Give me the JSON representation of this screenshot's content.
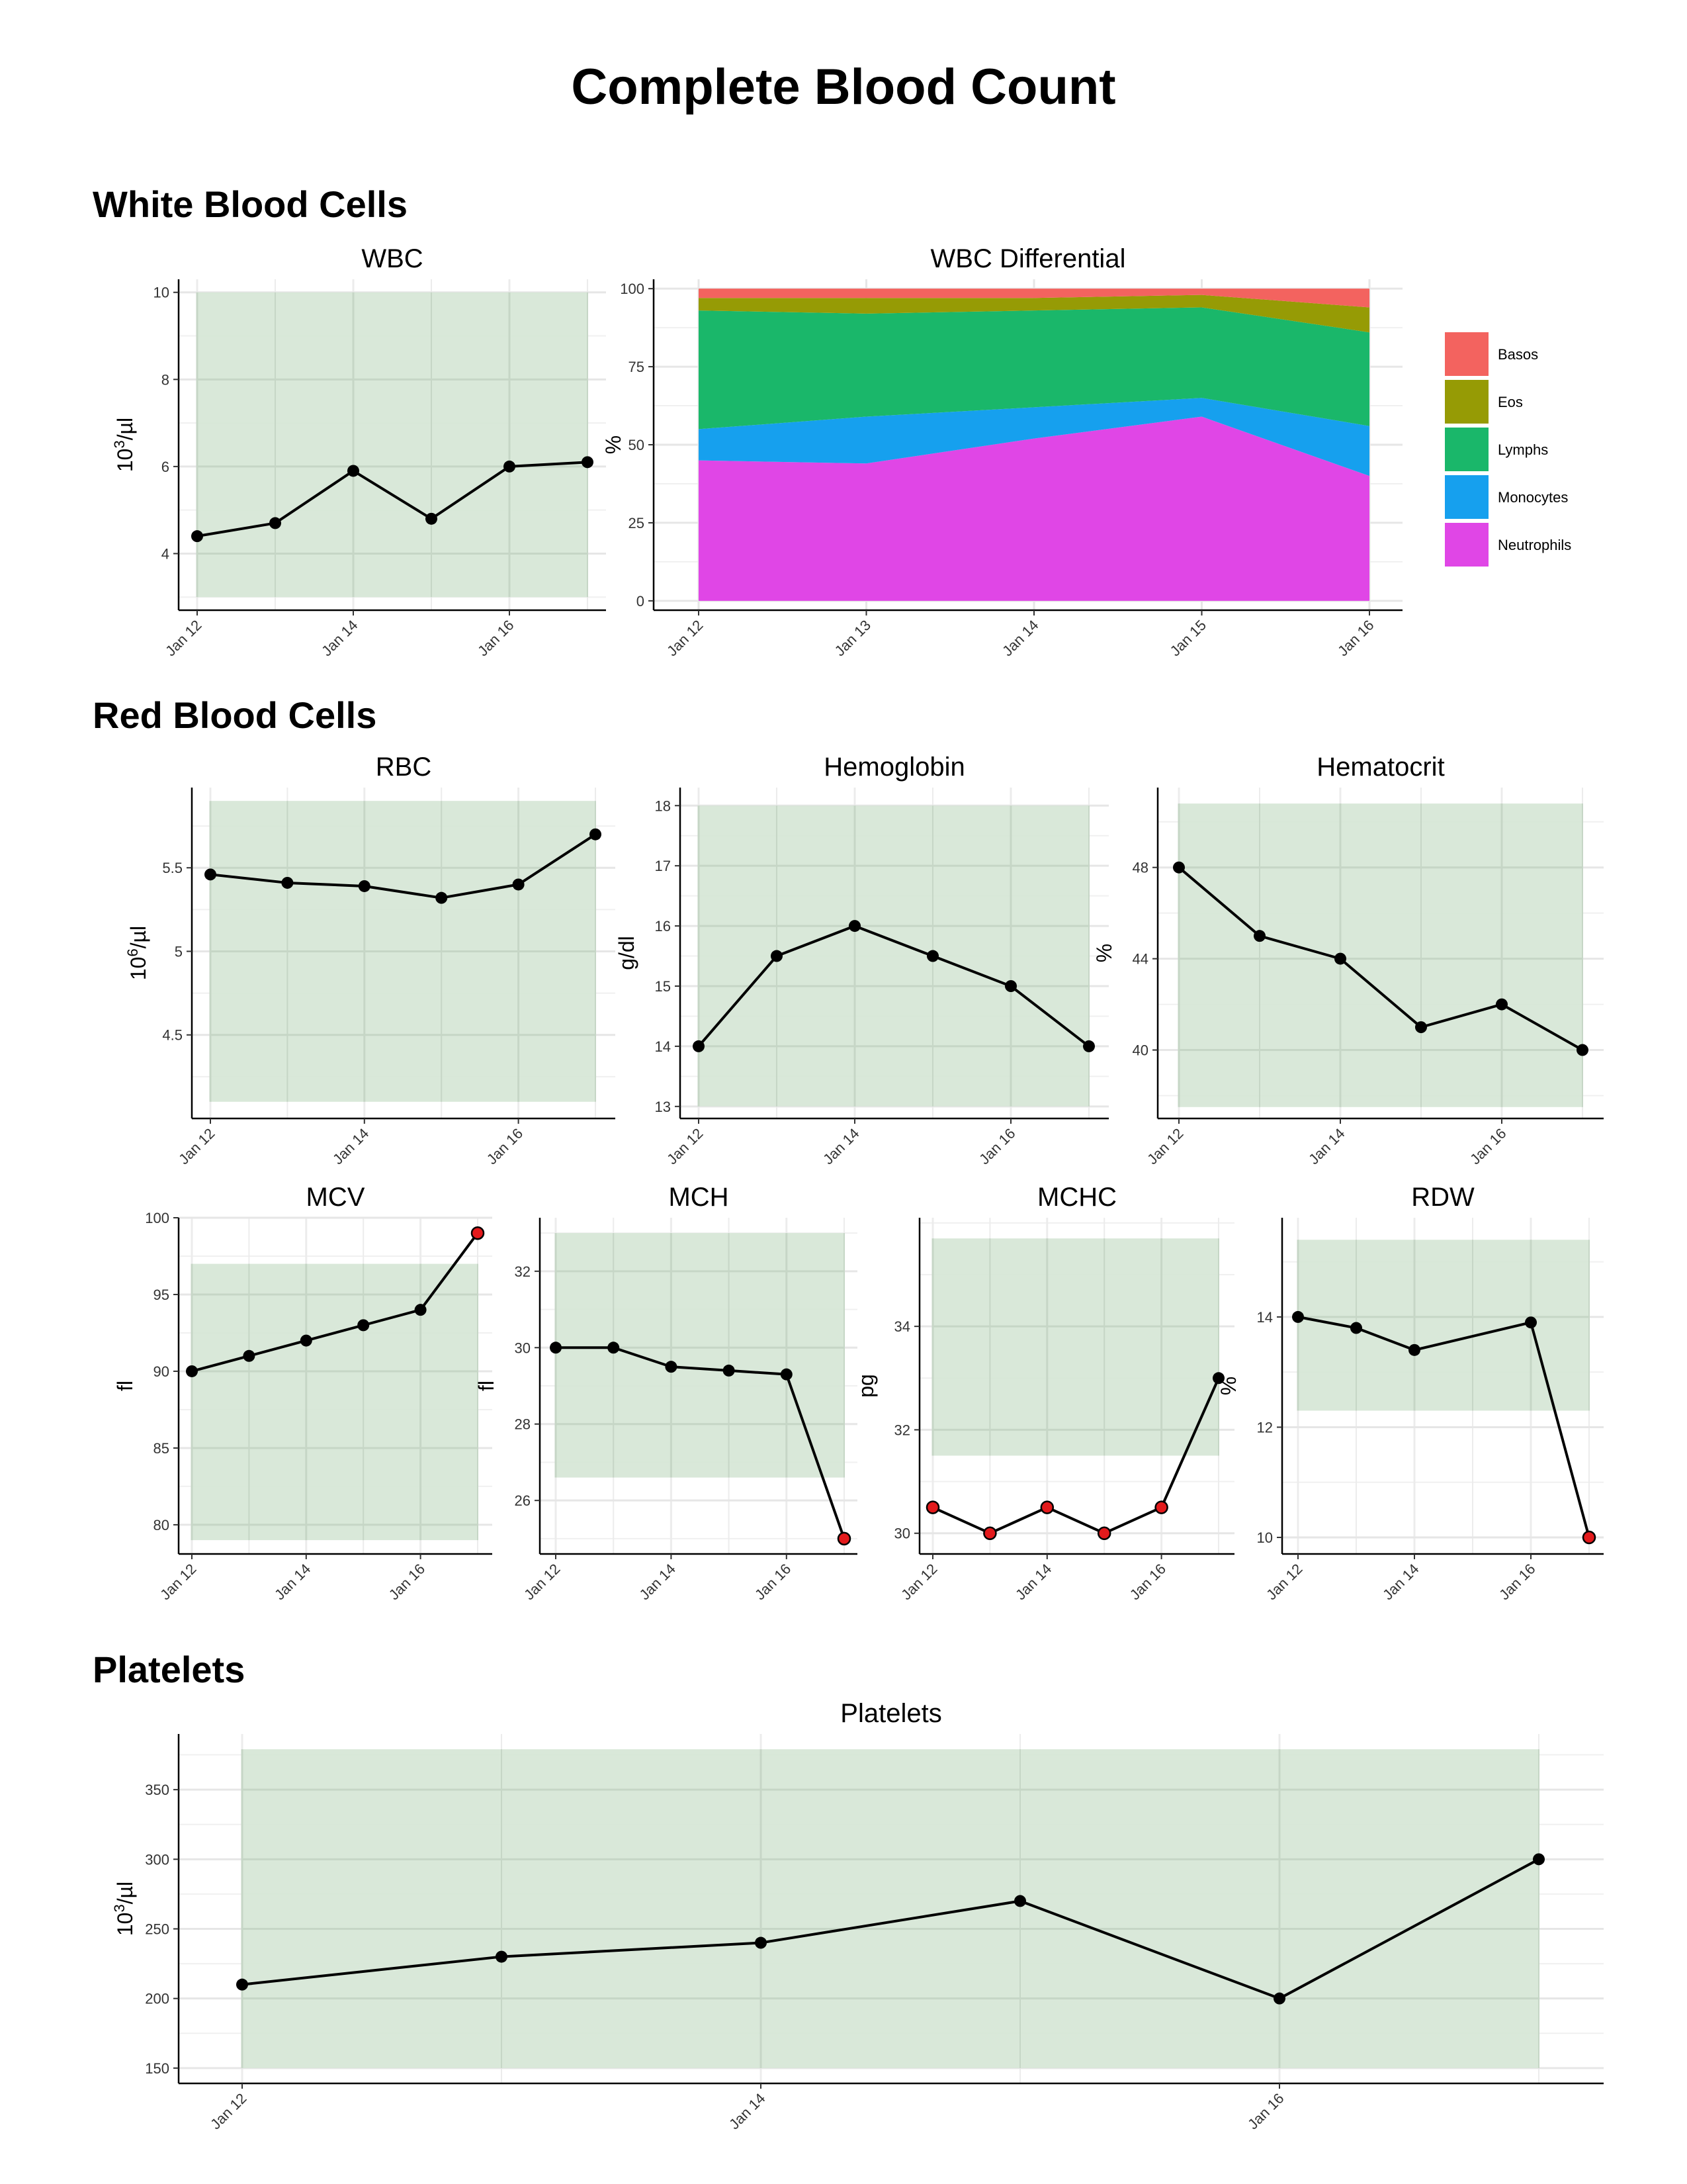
{
  "page": {
    "title": "Complete Blood Count"
  },
  "sections": {
    "wbc": "White Blood Cells",
    "rbc": "Red Blood Cells",
    "plt": "Platelets"
  },
  "colors": {
    "reference_band": "#d6e6d6",
    "line": "#000000",
    "point": "#000000",
    "point_abnormal": "#e31a1c",
    "grid": "#e6e6e6",
    "band_grid": "#c6d6c6"
  },
  "chart_data": [
    {
      "id": "wbc",
      "type": "line",
      "title": "WBC",
      "ylabel": "10^3/µl",
      "ylabel_base": "10",
      "ylabel_exp": "3",
      "ylabel_unit": "/µl",
      "x_dates": [
        "Jan 12",
        "Jan 13",
        "Jan 14",
        "Jan 15",
        "Jan 16",
        "Jan 17"
      ],
      "values": [
        4.4,
        4.7,
        5.9,
        4.8,
        6.0,
        6.1
      ],
      "abnormal": [
        false,
        false,
        false,
        false,
        false,
        false
      ],
      "reference_range": [
        3.0,
        10.0
      ],
      "ylim": [
        2.7,
        10.3
      ],
      "yticks": [
        4,
        6,
        8,
        10
      ],
      "xticks": [
        "Jan 12",
        "Jan 14",
        "Jan 16"
      ]
    },
    {
      "id": "diff",
      "type": "area",
      "title": "WBC Differential",
      "ylabel": "%",
      "categories": [
        "Jan 12",
        "Jan 13",
        "Jan 14",
        "Jan 15",
        "Jan 16"
      ],
      "series": [
        {
          "name": "Neutrophils",
          "color": "#e046e6",
          "values": [
            45,
            44,
            52,
            59,
            40
          ]
        },
        {
          "name": "Monocytes",
          "color": "#16a0ee",
          "values": [
            10,
            15,
            10,
            6,
            16
          ]
        },
        {
          "name": "Lymphs",
          "color": "#1ab76a",
          "values": [
            38,
            33,
            31,
            29,
            30
          ]
        },
        {
          "name": "Eos",
          "color": "#969b05",
          "values": [
            4,
            5,
            4,
            4,
            8
          ]
        },
        {
          "name": "Basos",
          "color": "#f3635f",
          "values": [
            3,
            3,
            3,
            2,
            6
          ]
        }
      ],
      "legend_order": [
        "Basos",
        "Eos",
        "Lymphs",
        "Monocytes",
        "Neutrophils"
      ],
      "ylim": [
        -3,
        103
      ],
      "yticks": [
        0,
        25,
        50,
        75,
        100
      ],
      "legend_position": "right"
    },
    {
      "id": "rbc",
      "type": "line",
      "title": "RBC",
      "ylabel": "10^6/µl",
      "ylabel_base": "10",
      "ylabel_exp": "6",
      "ylabel_unit": "/µl",
      "x_dates": [
        "Jan 12",
        "Jan 13",
        "Jan 14",
        "Jan 15",
        "Jan 16",
        "Jan 17"
      ],
      "values": [
        5.46,
        5.41,
        5.39,
        5.32,
        5.4,
        5.7
      ],
      "abnormal": [
        false,
        false,
        false,
        false,
        false,
        false
      ],
      "reference_range": [
        4.1,
        5.9
      ],
      "ylim": [
        4.0,
        5.98
      ],
      "yticks": [
        4.5,
        5.0,
        5.5
      ],
      "xticks": [
        "Jan 12",
        "Jan 14",
        "Jan 16"
      ]
    },
    {
      "id": "hgb",
      "type": "line",
      "title": "Hemoglobin",
      "ylabel": "g/dl",
      "x_dates": [
        "Jan 12",
        "Jan 13",
        "Jan 14",
        "Jan 15",
        "Jan 16",
        "Jan 17"
      ],
      "values": [
        14,
        15.5,
        16,
        15.5,
        15,
        14
      ],
      "abnormal": [
        false,
        false,
        false,
        false,
        false,
        false
      ],
      "reference_range": [
        13,
        18
      ],
      "ylim": [
        12.8,
        18.3
      ],
      "yticks": [
        13,
        14,
        15,
        16,
        17,
        18
      ],
      "xticks": [
        "Jan 12",
        "Jan 14",
        "Jan 16"
      ]
    },
    {
      "id": "hct",
      "type": "line",
      "title": "Hematocrit",
      "ylabel": "%",
      "x_dates": [
        "Jan 12",
        "Jan 13",
        "Jan 14",
        "Jan 15",
        "Jan 16",
        "Jan 17"
      ],
      "values": [
        48,
        45,
        44,
        41,
        42,
        40
      ],
      "abnormal": [
        false,
        false,
        false,
        false,
        false,
        false
      ],
      "reference_range": [
        37.5,
        50.8
      ],
      "ylim": [
        37.0,
        51.5
      ],
      "yticks": [
        40,
        44,
        48
      ],
      "xticks": [
        "Jan 12",
        "Jan 14",
        "Jan 16"
      ]
    },
    {
      "id": "mcv",
      "type": "line",
      "title": "MCV",
      "ylabel": "fl",
      "x_dates": [
        "Jan 12",
        "Jan 13",
        "Jan 14",
        "Jan 15",
        "Jan 16",
        "Jan 17"
      ],
      "values": [
        90,
        91,
        92,
        93,
        94,
        99
      ],
      "abnormal": [
        false,
        false,
        false,
        false,
        false,
        true
      ],
      "reference_range": [
        79,
        97
      ],
      "ylim": [
        78.1,
        100.0
      ],
      "yticks": [
        80,
        85,
        90,
        95,
        100
      ],
      "xticks": [
        "Jan 12",
        "Jan 14",
        "Jan 16"
      ]
    },
    {
      "id": "mch",
      "type": "line",
      "title": "MCH",
      "ylabel": "fl",
      "x_dates": [
        "Jan 12",
        "Jan 13",
        "Jan 14",
        "Jan 15",
        "Jan 16",
        "Jan 17"
      ],
      "values": [
        30,
        30,
        29.5,
        29.4,
        29.3,
        25
      ],
      "abnormal": [
        false,
        false,
        false,
        false,
        false,
        true
      ],
      "reference_range": [
        26.6,
        33.0
      ],
      "ylim": [
        24.6,
        33.4
      ],
      "yticks": [
        26,
        28,
        30,
        32
      ],
      "xticks": [
        "Jan 12",
        "Jan 14",
        "Jan 16"
      ]
    },
    {
      "id": "mchc",
      "type": "line",
      "title": "MCHC",
      "ylabel": "pg",
      "x_dates": [
        "Jan 12",
        "Jan 13",
        "Jan 14",
        "Jan 15",
        "Jan 16",
        "Jan 17"
      ],
      "values": [
        30.5,
        30,
        30.5,
        30,
        30.5,
        33
      ],
      "abnormal": [
        true,
        true,
        true,
        true,
        true,
        false
      ],
      "reference_range": [
        31.5,
        35.7
      ],
      "ylim": [
        29.6,
        36.1
      ],
      "yticks": [
        30,
        32,
        34
      ],
      "xticks": [
        "Jan 12",
        "Jan 14",
        "Jan 16"
      ]
    },
    {
      "id": "rdw",
      "type": "line",
      "title": "RDW",
      "ylabel": "%",
      "x_dates": [
        "Jan 12",
        "Jan 13",
        "Jan 14",
        "Jan 15",
        "Jan 16",
        "Jan 17"
      ],
      "values": [
        14,
        13.8,
        13.4,
        null,
        13.9,
        10
      ],
      "abnormal": [
        false,
        false,
        false,
        false,
        false,
        true
      ],
      "reference_range": [
        12.3,
        15.4
      ],
      "ylim": [
        9.7,
        15.8
      ],
      "yticks": [
        10,
        12,
        14
      ],
      "xticks": [
        "Jan 12",
        "Jan 14",
        "Jan 16"
      ]
    },
    {
      "id": "plt",
      "type": "line",
      "title": "Platelets",
      "ylabel": "10^3/µl",
      "ylabel_base": "10",
      "ylabel_exp": "3",
      "ylabel_unit": "/µl",
      "x_dates": [
        "Jan 12",
        "Jan 13",
        "Jan 14",
        "Jan 15",
        "Jan 16",
        "Jan 17"
      ],
      "values": [
        210,
        230,
        240,
        270,
        200,
        300
      ],
      "abnormal": [
        false,
        false,
        false,
        false,
        false,
        false
      ],
      "reference_range": [
        150,
        379
      ],
      "ylim": [
        139,
        390
      ],
      "yticks": [
        150,
        200,
        250,
        300,
        350
      ],
      "xticks": [
        "Jan 12",
        "Jan 14",
        "Jan 16"
      ]
    }
  ]
}
